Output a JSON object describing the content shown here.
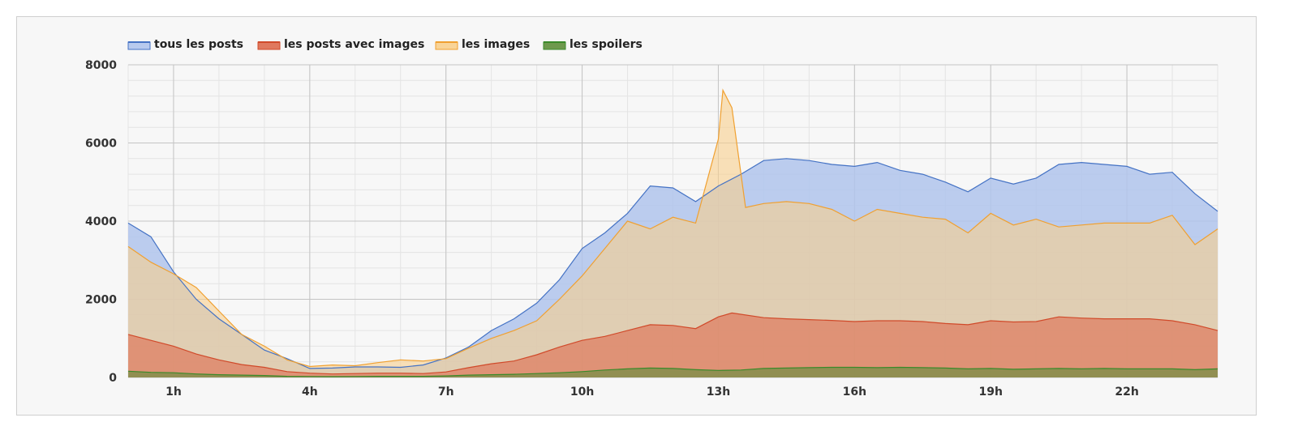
{
  "chart_data": {
    "type": "area",
    "title": "",
    "xlabel": "",
    "ylabel": "",
    "xlim": [
      0,
      24
    ],
    "ylim": [
      0,
      8000
    ],
    "x_ticks": [
      1,
      4,
      7,
      10,
      13,
      16,
      19,
      22
    ],
    "x_tick_labels": [
      "1h",
      "4h",
      "7h",
      "10h",
      "13h",
      "16h",
      "19h",
      "22h"
    ],
    "y_ticks": [
      0,
      2000,
      4000,
      6000,
      8000
    ],
    "y_tick_labels": [
      "0",
      "2000",
      "4000",
      "6000",
      "8000"
    ],
    "grid": true,
    "legend_position": "top-left",
    "series": [
      {
        "name": "tous les posts",
        "color": "#4472c4",
        "fill": "#b0c4ec",
        "points": [
          [
            0,
            3950
          ],
          [
            0.5,
            3600
          ],
          [
            1,
            2700
          ],
          [
            1.5,
            2000
          ],
          [
            2,
            1500
          ],
          [
            2.5,
            1100
          ],
          [
            3,
            700
          ],
          [
            3.5,
            480
          ],
          [
            4,
            230
          ],
          [
            4.5,
            240
          ],
          [
            5,
            270
          ],
          [
            5.5,
            270
          ],
          [
            6,
            260
          ],
          [
            6.5,
            320
          ],
          [
            7,
            500
          ],
          [
            7.5,
            780
          ],
          [
            8,
            1200
          ],
          [
            8.5,
            1500
          ],
          [
            9,
            1900
          ],
          [
            9.5,
            2500
          ],
          [
            10,
            3300
          ],
          [
            10.5,
            3700
          ],
          [
            11,
            4200
          ],
          [
            11.5,
            4900
          ],
          [
            12,
            4850
          ],
          [
            12.5,
            4500
          ],
          [
            13,
            4900
          ],
          [
            13.5,
            5200
          ],
          [
            14,
            5550
          ],
          [
            14.5,
            5600
          ],
          [
            15,
            5550
          ],
          [
            15.5,
            5450
          ],
          [
            16,
            5400
          ],
          [
            16.5,
            5500
          ],
          [
            17,
            5300
          ],
          [
            17.5,
            5200
          ],
          [
            18,
            5000
          ],
          [
            18.5,
            4750
          ],
          [
            19,
            5100
          ],
          [
            19.5,
            4950
          ],
          [
            20,
            5100
          ],
          [
            20.5,
            5450
          ],
          [
            21,
            5500
          ],
          [
            21.5,
            5450
          ],
          [
            22,
            5400
          ],
          [
            22.5,
            5200
          ],
          [
            23,
            5250
          ],
          [
            23.5,
            4700
          ],
          [
            24,
            4250
          ]
        ]
      },
      {
        "name": "les images",
        "color": "#f0a030",
        "fill": "#f8cf8c",
        "points": [
          [
            0,
            3350
          ],
          [
            0.5,
            2950
          ],
          [
            1,
            2650
          ],
          [
            1.5,
            2300
          ],
          [
            2,
            1700
          ],
          [
            2.5,
            1100
          ],
          [
            3,
            800
          ],
          [
            3.5,
            450
          ],
          [
            4,
            280
          ],
          [
            4.5,
            320
          ],
          [
            5,
            300
          ],
          [
            5.5,
            380
          ],
          [
            6,
            450
          ],
          [
            6.5,
            420
          ],
          [
            7,
            480
          ],
          [
            7.5,
            750
          ],
          [
            8,
            1000
          ],
          [
            8.5,
            1200
          ],
          [
            9,
            1450
          ],
          [
            9.5,
            2000
          ],
          [
            10,
            2600
          ],
          [
            10.5,
            3300
          ],
          [
            11,
            4000
          ],
          [
            11.5,
            3800
          ],
          [
            12,
            4100
          ],
          [
            12.5,
            3950
          ],
          [
            13,
            6100
          ],
          [
            13.1,
            7350
          ],
          [
            13.3,
            6900
          ],
          [
            13.6,
            4350
          ],
          [
            14,
            4450
          ],
          [
            14.5,
            4500
          ],
          [
            15,
            4450
          ],
          [
            15.5,
            4300
          ],
          [
            16,
            4000
          ],
          [
            16.5,
            4300
          ],
          [
            17,
            4200
          ],
          [
            17.5,
            4100
          ],
          [
            18,
            4050
          ],
          [
            18.5,
            3700
          ],
          [
            19,
            4200
          ],
          [
            19.5,
            3900
          ],
          [
            20,
            4050
          ],
          [
            20.5,
            3850
          ],
          [
            21,
            3900
          ],
          [
            21.5,
            3950
          ],
          [
            22,
            3950
          ],
          [
            22.5,
            3950
          ],
          [
            23,
            4150
          ],
          [
            23.5,
            3400
          ],
          [
            24,
            3800
          ]
        ]
      },
      {
        "name": "les posts avec images",
        "color": "#d04a2a",
        "fill": "#dd6a4c",
        "points": [
          [
            0,
            1100
          ],
          [
            0.5,
            950
          ],
          [
            1,
            800
          ],
          [
            1.5,
            600
          ],
          [
            2,
            450
          ],
          [
            2.5,
            330
          ],
          [
            3,
            260
          ],
          [
            3.5,
            150
          ],
          [
            4,
            110
          ],
          [
            4.5,
            90
          ],
          [
            5,
            100
          ],
          [
            5.5,
            110
          ],
          [
            6,
            110
          ],
          [
            6.5,
            100
          ],
          [
            7,
            140
          ],
          [
            7.5,
            250
          ],
          [
            8,
            350
          ],
          [
            8.5,
            420
          ],
          [
            9,
            580
          ],
          [
            9.5,
            780
          ],
          [
            10,
            950
          ],
          [
            10.5,
            1050
          ],
          [
            11,
            1200
          ],
          [
            11.5,
            1350
          ],
          [
            12,
            1330
          ],
          [
            12.5,
            1250
          ],
          [
            13,
            1550
          ],
          [
            13.3,
            1650
          ],
          [
            14,
            1530
          ],
          [
            14.5,
            1500
          ],
          [
            15,
            1480
          ],
          [
            15.5,
            1460
          ],
          [
            16,
            1430
          ],
          [
            16.5,
            1450
          ],
          [
            17,
            1450
          ],
          [
            17.5,
            1430
          ],
          [
            18,
            1380
          ],
          [
            18.5,
            1350
          ],
          [
            19,
            1450
          ],
          [
            19.5,
            1420
          ],
          [
            20,
            1430
          ],
          [
            20.5,
            1550
          ],
          [
            21,
            1520
          ],
          [
            21.5,
            1500
          ],
          [
            22,
            1500
          ],
          [
            22.5,
            1500
          ],
          [
            23,
            1450
          ],
          [
            23.5,
            1350
          ],
          [
            24,
            1200
          ]
        ]
      },
      {
        "name": "les spoilers",
        "color": "#3a8a2a",
        "fill": "#5e8e3a",
        "points": [
          [
            0,
            160
          ],
          [
            0.5,
            130
          ],
          [
            1,
            120
          ],
          [
            1.5,
            90
          ],
          [
            2,
            70
          ],
          [
            2.5,
            60
          ],
          [
            3,
            50
          ],
          [
            3.5,
            30
          ],
          [
            4,
            25
          ],
          [
            4.5,
            20
          ],
          [
            5,
            25
          ],
          [
            5.5,
            30
          ],
          [
            6,
            30
          ],
          [
            6.5,
            30
          ],
          [
            7,
            40
          ],
          [
            7.5,
            60
          ],
          [
            8,
            70
          ],
          [
            8.5,
            80
          ],
          [
            9,
            100
          ],
          [
            9.5,
            120
          ],
          [
            10,
            150
          ],
          [
            10.5,
            190
          ],
          [
            11,
            220
          ],
          [
            11.5,
            240
          ],
          [
            12,
            230
          ],
          [
            12.5,
            200
          ],
          [
            13,
            180
          ],
          [
            13.5,
            190
          ],
          [
            14,
            230
          ],
          [
            14.5,
            240
          ],
          [
            15,
            250
          ],
          [
            15.5,
            260
          ],
          [
            16,
            260
          ],
          [
            16.5,
            250
          ],
          [
            17,
            260
          ],
          [
            17.5,
            250
          ],
          [
            18,
            240
          ],
          [
            18.5,
            220
          ],
          [
            19,
            230
          ],
          [
            19.5,
            210
          ],
          [
            20,
            220
          ],
          [
            20.5,
            230
          ],
          [
            21,
            220
          ],
          [
            21.5,
            230
          ],
          [
            22,
            220
          ],
          [
            22.5,
            220
          ],
          [
            23,
            220
          ],
          [
            23.5,
            200
          ],
          [
            24,
            220
          ]
        ]
      }
    ]
  }
}
